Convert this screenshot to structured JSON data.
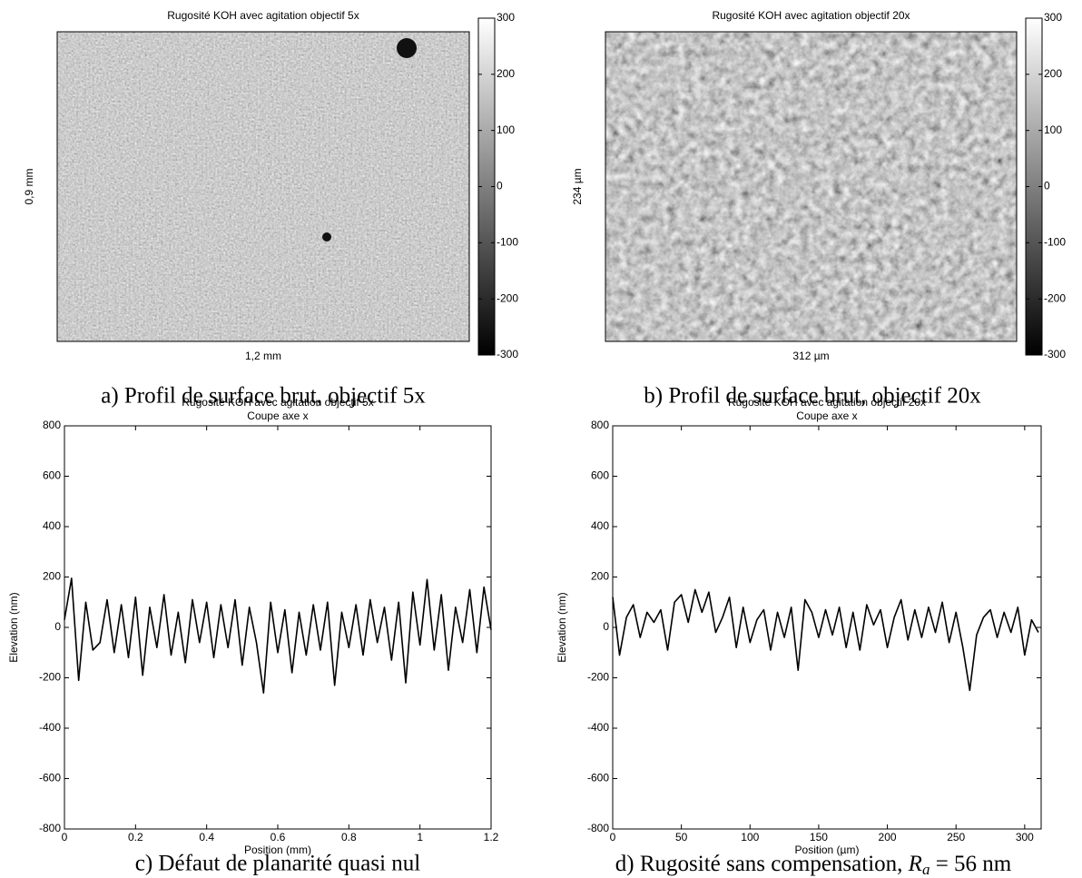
{
  "chart_data": [
    {
      "type": "heatmap",
      "title": "Rugosité KOH avec agitation objectif 5x",
      "xlabel": "1,2 mm",
      "ylabel": "0,9 mm",
      "clim": [
        -300,
        300
      ],
      "cticks": [
        300,
        200,
        100,
        0,
        -100,
        -200,
        -300
      ],
      "colormap": "gray",
      "caption": "a) Profil de surface brut, objectif 5x"
    },
    {
      "type": "heatmap",
      "title": "Rugosité KOH avec agitation objectif 20x",
      "xlabel": "312 µm",
      "ylabel": "234 µm",
      "clim": [
        -300,
        300
      ],
      "cticks": [
        300,
        200,
        100,
        0,
        -100,
        -200,
        -300
      ],
      "colormap": "gray",
      "caption": "b) Profil de surface brut, objectif 20x"
    },
    {
      "type": "line",
      "title": "Rugosité KOH avec agitation objectif 5x",
      "subtitle": "Coupe axe x",
      "xlabel": "Position (mm)",
      "ylabel": "Elevation (nm)",
      "x": [
        0,
        0.02,
        0.04,
        0.06,
        0.08,
        0.1,
        0.12,
        0.14,
        0.16,
        0.18,
        0.2,
        0.22,
        0.24,
        0.26,
        0.28,
        0.3,
        0.32,
        0.34,
        0.36,
        0.38,
        0.4,
        0.42,
        0.44,
        0.46,
        0.48,
        0.5,
        0.52,
        0.54,
        0.56,
        0.58,
        0.6,
        0.62,
        0.64,
        0.66,
        0.68,
        0.7,
        0.72,
        0.74,
        0.76,
        0.78,
        0.8,
        0.82,
        0.84,
        0.86,
        0.88,
        0.9,
        0.92,
        0.94,
        0.96,
        0.98,
        1,
        1.02,
        1.04,
        1.06,
        1.08,
        1.1,
        1.12,
        1.14,
        1.16,
        1.18,
        1.2
      ],
      "series": [
        {
          "color": "#000000",
          "values": [
            30,
            195,
            -210,
            100,
            -90,
            -60,
            110,
            -100,
            90,
            -120,
            120,
            -190,
            80,
            -80,
            130,
            -110,
            60,
            -140,
            110,
            -60,
            100,
            -120,
            90,
            -80,
            110,
            -150,
            80,
            -60,
            -260,
            100,
            -100,
            70,
            -180,
            60,
            -110,
            90,
            -90,
            100,
            -230,
            60,
            -80,
            90,
            -110,
            110,
            -60,
            80,
            -130,
            100,
            -220,
            140,
            -70,
            190,
            -90,
            130,
            -170,
            80,
            -60,
            150,
            -100,
            160,
            -10
          ]
        }
      ],
      "xlim": [
        0,
        1.2
      ],
      "xticks": [
        0,
        0.2,
        0.4,
        0.6,
        0.8,
        1,
        1.2
      ],
      "ylim": [
        -800,
        800
      ],
      "yticks": [
        -800,
        -600,
        -400,
        -200,
        0,
        200,
        400,
        600,
        800
      ],
      "caption": "c) Défaut de planarité quasi nul"
    },
    {
      "type": "line",
      "title": "Rugosité KOH avec agitation objectif 20x",
      "subtitle": "Coupe axe x",
      "xlabel": "Position (µm)",
      "ylabel": "Elevation (nm)",
      "x": [
        0,
        5,
        10,
        15,
        20,
        25,
        30,
        35,
        40,
        45,
        50,
        55,
        60,
        65,
        70,
        75,
        80,
        85,
        90,
        95,
        100,
        105,
        110,
        115,
        120,
        125,
        130,
        135,
        140,
        145,
        150,
        155,
        160,
        165,
        170,
        175,
        180,
        185,
        190,
        195,
        200,
        205,
        210,
        215,
        220,
        225,
        230,
        235,
        240,
        245,
        250,
        255,
        260,
        265,
        270,
        275,
        280,
        285,
        290,
        295,
        300,
        305,
        310
      ],
      "series": [
        {
          "color": "#000000",
          "values": [
            120,
            -110,
            40,
            90,
            -40,
            60,
            20,
            70,
            -90,
            100,
            130,
            20,
            150,
            60,
            140,
            -20,
            40,
            120,
            -80,
            80,
            -60,
            30,
            70,
            -90,
            60,
            -40,
            80,
            -170,
            110,
            60,
            -40,
            70,
            -30,
            80,
            -80,
            60,
            -90,
            90,
            10,
            70,
            -80,
            40,
            110,
            -50,
            70,
            -40,
            80,
            -20,
            100,
            -60,
            60,
            -80,
            -250,
            -30,
            40,
            70,
            -40,
            60,
            -20,
            80,
            -110,
            30,
            -20
          ]
        }
      ],
      "xlim": [
        0,
        312
      ],
      "xticks": [
        0,
        50,
        100,
        150,
        200,
        250,
        300
      ],
      "ylim": [
        -800,
        800
      ],
      "yticks": [
        -800,
        -600,
        -400,
        -200,
        0,
        200,
        400,
        600,
        800
      ],
      "caption": {
        "text": "d) Rugosité sans compensation, ",
        "symbol": "R",
        "subscript": "a",
        "suffix": " = 56 nm"
      }
    }
  ]
}
